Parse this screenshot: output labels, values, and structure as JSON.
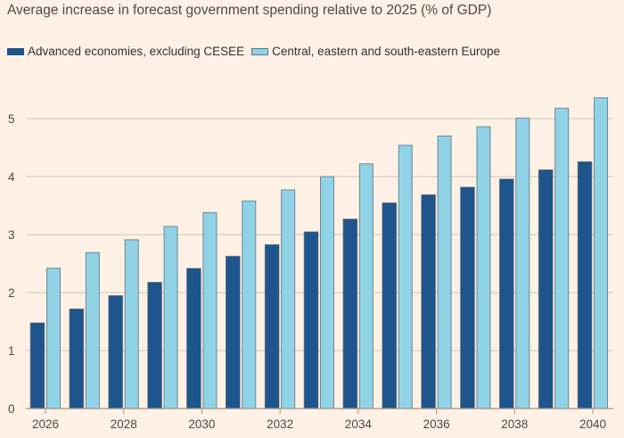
{
  "chart_data": {
    "type": "bar",
    "title": "Average increase in forecast government spending relative to 2025 (% of GDP)",
    "xlabel": "",
    "ylabel": "",
    "ylim": [
      0,
      5.5
    ],
    "yticks": [
      0,
      1,
      2,
      3,
      4,
      5
    ],
    "xtick_labels": [
      "2026",
      "2028",
      "2030",
      "2032",
      "2034",
      "2036",
      "2038",
      "2040"
    ],
    "grid": true,
    "legend_position": "top-left",
    "categories": [
      "2026",
      "2027",
      "2028",
      "2029",
      "2030",
      "2031",
      "2032",
      "2033",
      "2034",
      "2035",
      "2036",
      "2037",
      "2038",
      "2039",
      "2040"
    ],
    "series": [
      {
        "name": "Advanced economies, excluding CESEE",
        "color": "#1E558C",
        "values": [
          1.48,
          1.72,
          1.95,
          2.18,
          2.42,
          2.63,
          2.83,
          3.05,
          3.27,
          3.55,
          3.69,
          3.82,
          3.96,
          4.12,
          4.26
        ]
      },
      {
        "name": "Central, eastern and south-eastern Europe",
        "color": "#90D3E6",
        "values": [
          2.42,
          2.69,
          2.91,
          3.14,
          3.38,
          3.58,
          3.77,
          4.0,
          4.22,
          4.54,
          4.7,
          4.86,
          5.01,
          5.18,
          5.36
        ]
      }
    ]
  }
}
